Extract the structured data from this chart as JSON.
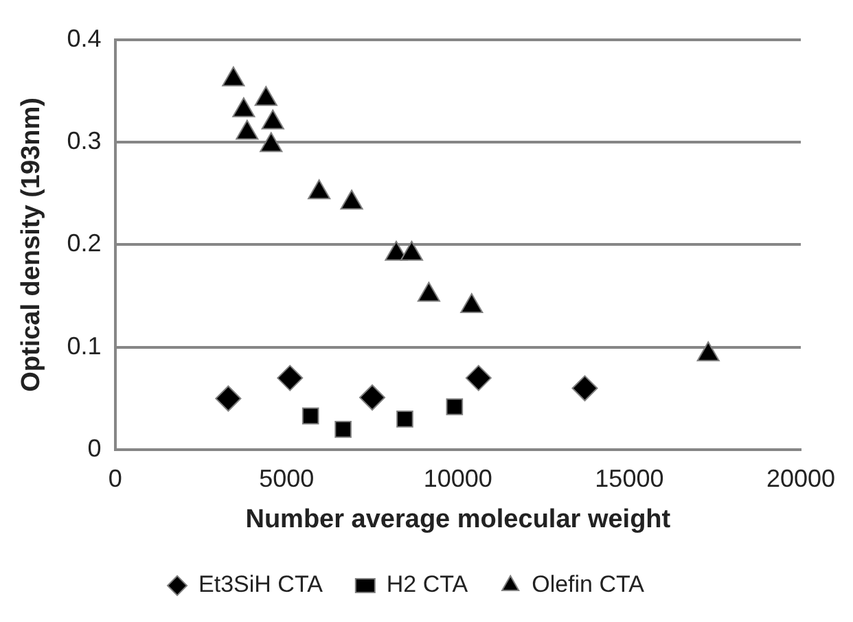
{
  "chart_data": {
    "type": "scatter",
    "xlabel": "Number average molecular weight",
    "ylabel": "Optical density (193nm)",
    "xlim": [
      0,
      20000
    ],
    "xticks": [
      0,
      5000,
      10000,
      15000,
      20000
    ],
    "ylim": [
      0,
      0.4
    ],
    "yticks": [
      0,
      0.1,
      0.2,
      0.3,
      0.4
    ],
    "grid": "y",
    "legend": "bottom",
    "series": [
      {
        "name": "Et3SiH CTA",
        "color": "#000000",
        "marker": "diamond",
        "x": [
          3300,
          5100,
          7500,
          10600,
          13700
        ],
        "values": [
          0.05,
          0.07,
          0.051,
          0.07,
          0.06
        ]
      },
      {
        "name": "H2 CTA",
        "color": "#000000",
        "marker": "square",
        "x": [
          5700,
          6650,
          8450,
          9900
        ],
        "values": [
          0.033,
          0.02,
          0.03,
          0.042
        ]
      },
      {
        "name": "Olefin CTA",
        "color": "#000000",
        "marker": "triangle",
        "x": [
          3450,
          3750,
          4400,
          3850,
          4600,
          4550,
          5950,
          6900,
          8200,
          8650,
          9150,
          10400,
          17300
        ],
        "values": [
          0.361,
          0.331,
          0.342,
          0.309,
          0.319,
          0.297,
          0.251,
          0.241,
          0.191,
          0.191,
          0.151,
          0.14,
          0.093
        ]
      }
    ]
  }
}
